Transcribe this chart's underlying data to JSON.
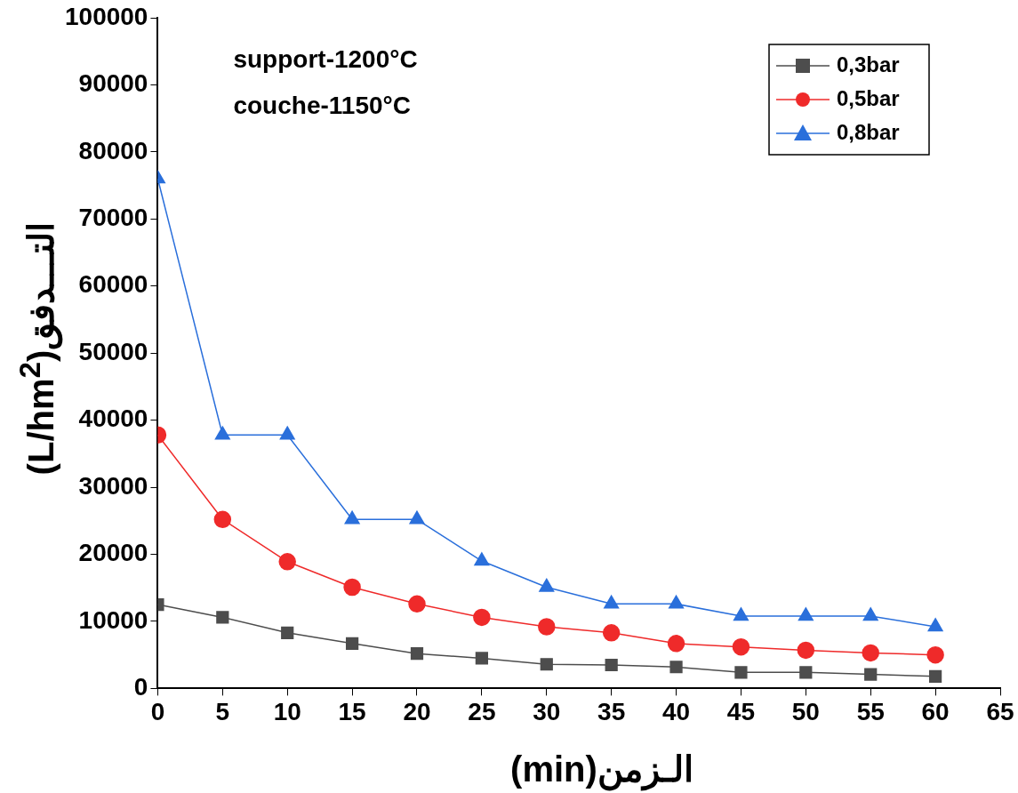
{
  "chart_data": {
    "type": "line",
    "xlabel": "(min)الـزمن",
    "ylabel": "(L/hm$^{2}$)التـــدفق",
    "annotations": [
      "support-1200°C",
      "couche-1150°C"
    ],
    "x": [
      0,
      5,
      10,
      15,
      20,
      25,
      30,
      35,
      40,
      45,
      50,
      55,
      60
    ],
    "series": [
      {
        "name": "0,3bar",
        "color": "#4d4d4d",
        "marker": "square",
        "values": [
          12500,
          10600,
          8300,
          6700,
          5200,
          4500,
          3600,
          3500,
          3200,
          2400,
          2400,
          2100,
          1800
        ]
      },
      {
        "name": "0,5bar",
        "color": "#ef2a2a",
        "marker": "circle",
        "values": [
          37800,
          25200,
          18900,
          15100,
          12600,
          10600,
          9200,
          8300,
          6700,
          6200,
          5700,
          5300,
          5000
        ]
      },
      {
        "name": "0,8bar",
        "color": "#2a6fdb",
        "marker": "triangle",
        "values": [
          76000,
          37800,
          37800,
          25200,
          25200,
          19000,
          15100,
          12600,
          12600,
          10800,
          10800,
          10800,
          9200
        ]
      }
    ],
    "xlim": [
      0,
      65
    ],
    "xticks": [
      0,
      5,
      10,
      15,
      20,
      25,
      30,
      35,
      40,
      45,
      50,
      55,
      60,
      65
    ],
    "ylim": [
      0,
      100000
    ],
    "yticks": [
      0,
      10000,
      20000,
      30000,
      40000,
      50000,
      60000,
      70000,
      80000,
      90000,
      100000
    ],
    "grid": false,
    "legend": "top right",
    "line_style": "solid"
  }
}
